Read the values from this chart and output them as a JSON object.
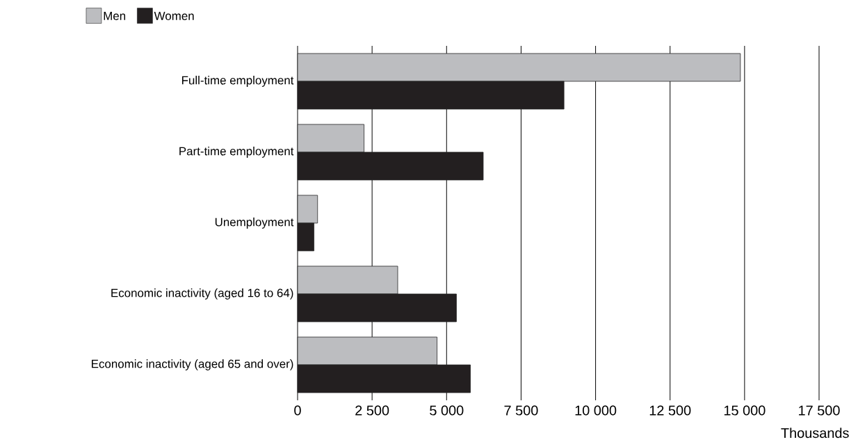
{
  "chart_data": {
    "type": "bar",
    "orientation": "horizontal",
    "xlabel": "Thousands",
    "categories": [
      "Full-time employment",
      "Part-time employment",
      "Unemployment",
      "Economic inactivity (aged 16 to 64)",
      "Economic inactivity (aged 65 and over)"
    ],
    "series": [
      {
        "name": "Men",
        "color": "#bcbdc0",
        "values": [
          14860,
          2230,
          670,
          3360,
          4680
        ]
      },
      {
        "name": "Women",
        "color": "#231f20",
        "values": [
          8940,
          6230,
          550,
          5330,
          5800
        ]
      }
    ],
    "xlim": [
      0,
      17500
    ],
    "xticks": [
      0,
      {
        "value": 2500,
        "label": "2 500"
      },
      {
        "value": 5000,
        "label": "5 000"
      },
      {
        "value": 7500,
        "label": "7 500"
      },
      {
        "value": 10000,
        "label": "10 000"
      },
      {
        "value": 12500,
        "label": "12 500"
      },
      {
        "value": 15000,
        "label": "15 000"
      },
      {
        "value": 17500,
        "label": "17 500"
      }
    ],
    "grid": "x",
    "legend": "top left"
  }
}
